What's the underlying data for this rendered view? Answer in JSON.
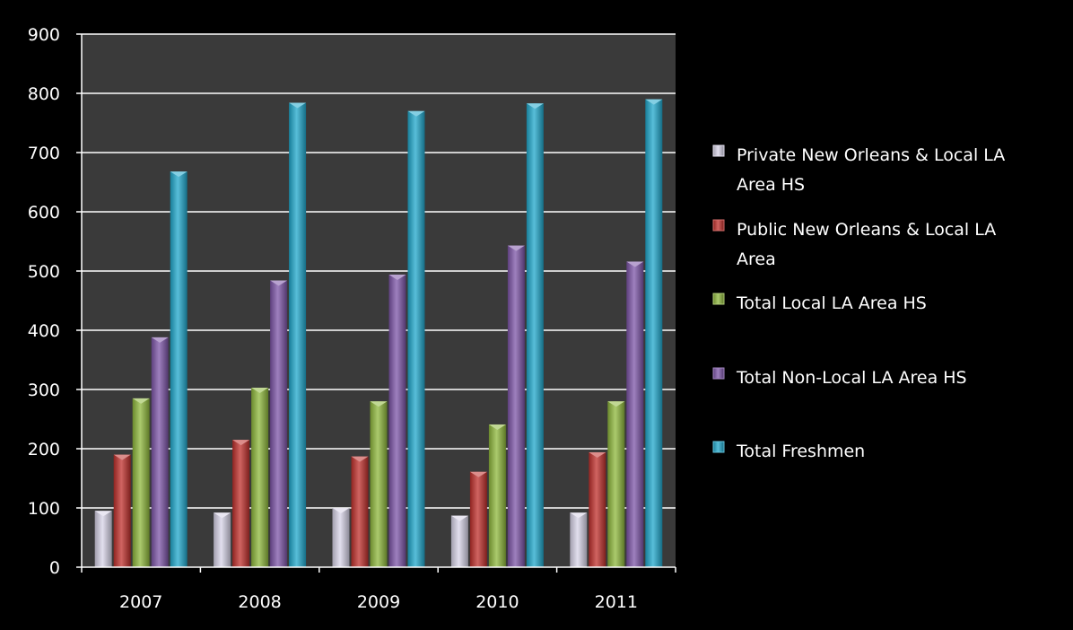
{
  "chart_data": {
    "type": "bar",
    "categories": [
      "2007",
      "2008",
      "2009",
      "2010",
      "2011"
    ],
    "series": [
      {
        "name_lines": [
          "Private New Orleans & Local LA",
          "Area HS"
        ],
        "color": "#d8d4e8",
        "values": [
          95,
          92,
          100,
          87,
          92
        ]
      },
      {
        "name_lines": [
          "Public New Orleans & Local LA",
          "Area"
        ],
        "color": "#c0302c",
        "values": [
          190,
          215,
          187,
          161,
          194
        ]
      },
      {
        "name_lines": [
          "Total Local LA Area HS"
        ],
        "color": "#8fb83c",
        "values": [
          285,
          303,
          280,
          241,
          280
        ]
      },
      {
        "name_lines": [
          "Total Non-Local LA Area HS"
        ],
        "color": "#7d55a8",
        "values": [
          388,
          484,
          494,
          543,
          516
        ]
      },
      {
        "name_lines": [
          "Total Freshmen"
        ],
        "color": "#20a8cc",
        "values": [
          668,
          784,
          770,
          783,
          790
        ]
      }
    ],
    "ylim": [
      0,
      900
    ],
    "yticks": [
      "0",
      "100",
      "200",
      "300",
      "400",
      "500",
      "600",
      "700",
      "800",
      "900"
    ],
    "grid": true,
    "legend": "right",
    "plot_background": "#3a3a3a",
    "page_background": "#000000"
  }
}
